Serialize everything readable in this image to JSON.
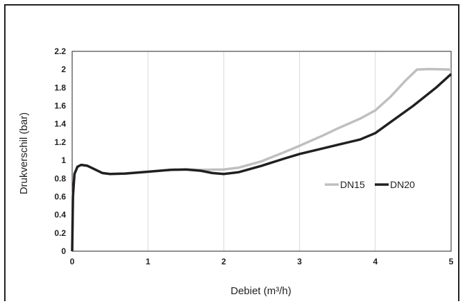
{
  "chart_data": {
    "type": "line",
    "xlabel": "Debiet (m³/h)",
    "ylabel": "Drukverschil (bar)",
    "xlim": [
      0,
      5
    ],
    "ylim": [
      0,
      2.2
    ],
    "x_ticks": [
      "0",
      "1",
      "2",
      "3",
      "4",
      "5"
    ],
    "y_ticks": [
      "0",
      "0.2",
      "0.4",
      "0.6",
      "0.8",
      "1",
      "1.2",
      "1.4",
      "1.6",
      "1.8",
      "2",
      "2.2"
    ],
    "grid": "vertical",
    "legend_position": "right",
    "series": [
      {
        "name": "DN15",
        "color": "#bfbfbf",
        "points": [
          [
            0.0,
            0.0
          ],
          [
            0.01,
            0.6
          ],
          [
            0.03,
            0.85
          ],
          [
            0.07,
            0.93
          ],
          [
            0.12,
            0.95
          ],
          [
            0.2,
            0.94
          ],
          [
            0.3,
            0.9
          ],
          [
            0.4,
            0.86
          ],
          [
            0.5,
            0.85
          ],
          [
            0.7,
            0.855
          ],
          [
            1.0,
            0.875
          ],
          [
            1.3,
            0.895
          ],
          [
            1.5,
            0.9
          ],
          [
            1.7,
            0.895
          ],
          [
            2.0,
            0.9
          ],
          [
            2.2,
            0.92
          ],
          [
            2.5,
            0.99
          ],
          [
            2.8,
            1.09
          ],
          [
            3.0,
            1.16
          ],
          [
            3.3,
            1.27
          ],
          [
            3.5,
            1.35
          ],
          [
            3.8,
            1.46
          ],
          [
            4.0,
            1.55
          ],
          [
            4.2,
            1.7
          ],
          [
            4.4,
            1.88
          ],
          [
            4.55,
            2.0
          ],
          [
            4.7,
            2.005
          ],
          [
            5.0,
            2.0
          ]
        ]
      },
      {
        "name": "DN20",
        "color": "#231f20",
        "points": [
          [
            0.0,
            0.0
          ],
          [
            0.01,
            0.6
          ],
          [
            0.03,
            0.85
          ],
          [
            0.07,
            0.93
          ],
          [
            0.12,
            0.95
          ],
          [
            0.2,
            0.94
          ],
          [
            0.3,
            0.9
          ],
          [
            0.4,
            0.86
          ],
          [
            0.5,
            0.85
          ],
          [
            0.7,
            0.855
          ],
          [
            1.0,
            0.875
          ],
          [
            1.3,
            0.895
          ],
          [
            1.5,
            0.9
          ],
          [
            1.7,
            0.885
          ],
          [
            1.85,
            0.86
          ],
          [
            2.0,
            0.85
          ],
          [
            2.2,
            0.87
          ],
          [
            2.5,
            0.94
          ],
          [
            2.8,
            1.02
          ],
          [
            3.0,
            1.07
          ],
          [
            3.3,
            1.13
          ],
          [
            3.5,
            1.17
          ],
          [
            3.8,
            1.23
          ],
          [
            4.0,
            1.3
          ],
          [
            4.2,
            1.42
          ],
          [
            4.5,
            1.6
          ],
          [
            4.8,
            1.8
          ],
          [
            5.0,
            1.95
          ]
        ]
      }
    ]
  }
}
